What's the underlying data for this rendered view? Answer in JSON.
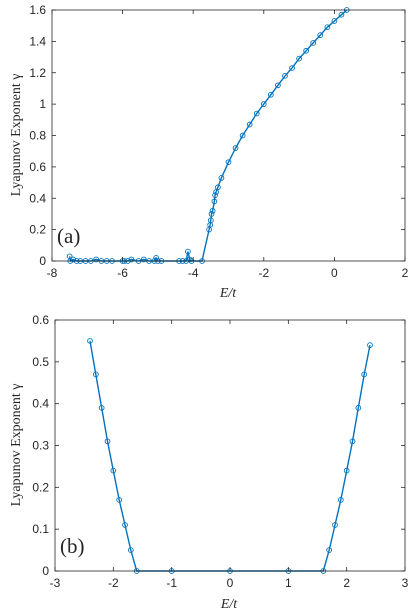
{
  "colors": {
    "series": "#0072BD",
    "axis": "#262626"
  },
  "chart_data": [
    {
      "type": "scatter",
      "panel_label": "(a)",
      "xlabel": "E/t",
      "ylabel": "Lyapunov Exponent γ",
      "xlim": [
        -8,
        2
      ],
      "ylim": [
        0,
        1.6
      ],
      "xticks": [
        "-8",
        "-6",
        "-4",
        "-2",
        "0",
        "2"
      ],
      "yticks": [
        "0",
        "0.2",
        "0.4",
        "0.6",
        "0.8",
        "1",
        "1.2",
        "1.4",
        "1.6"
      ],
      "grid": false,
      "series": [
        {
          "marker": "circle-open",
          "line": true,
          "points": [
            [
              -7.5,
              0.03
            ],
            [
              -7.48,
              0.0
            ],
            [
              -7.4,
              0.01
            ],
            [
              -7.3,
              0.0
            ],
            [
              -7.2,
              0.0
            ],
            [
              -7.05,
              0.0
            ],
            [
              -6.9,
              0.0
            ],
            [
              -6.75,
              0.01
            ],
            [
              -6.6,
              0.0
            ],
            [
              -6.45,
              0.0
            ],
            [
              -6.3,
              0.0
            ],
            [
              -6.0,
              0.0
            ],
            [
              -5.95,
              0.0
            ],
            [
              -5.85,
              0.0
            ],
            [
              -5.75,
              0.01
            ],
            [
              -5.55,
              0.0
            ],
            [
              -5.4,
              0.01
            ],
            [
              -5.25,
              0.0
            ],
            [
              -5.1,
              0.0
            ],
            [
              -5.05,
              0.02
            ],
            [
              -5.0,
              0.0
            ],
            [
              -4.9,
              0.0
            ],
            [
              -4.4,
              0.0
            ],
            [
              -4.3,
              0.0
            ],
            [
              -4.2,
              0.0
            ],
            [
              -4.15,
              0.06
            ],
            [
              -4.1,
              0.01
            ],
            [
              -4.05,
              0.0
            ],
            [
              -3.75,
              0.0
            ],
            [
              -3.55,
              0.2
            ],
            [
              -3.52,
              0.23
            ],
            [
              -3.5,
              0.26
            ],
            [
              -3.48,
              0.3
            ],
            [
              -3.45,
              0.32
            ],
            [
              -3.4,
              0.38
            ],
            [
              -3.38,
              0.42
            ],
            [
              -3.35,
              0.44
            ],
            [
              -3.3,
              0.47
            ],
            [
              -3.2,
              0.53
            ],
            [
              -3.0,
              0.63
            ],
            [
              -2.8,
              0.72
            ],
            [
              -2.6,
              0.8
            ],
            [
              -2.4,
              0.87
            ],
            [
              -2.2,
              0.94
            ],
            [
              -2.0,
              1.0
            ],
            [
              -1.8,
              1.06
            ],
            [
              -1.6,
              1.12
            ],
            [
              -1.4,
              1.18
            ],
            [
              -1.2,
              1.23
            ],
            [
              -1.0,
              1.29
            ],
            [
              -0.8,
              1.34
            ],
            [
              -0.6,
              1.39
            ],
            [
              -0.4,
              1.44
            ],
            [
              -0.2,
              1.49
            ],
            [
              0.0,
              1.53
            ],
            [
              0.2,
              1.57
            ],
            [
              0.35,
              1.6
            ]
          ]
        }
      ]
    },
    {
      "type": "scatter",
      "panel_label": "(b)",
      "xlabel": "E/t",
      "ylabel": "Lyapunov Exponent γ",
      "xlim": [
        -3,
        3
      ],
      "ylim": [
        0,
        0.6
      ],
      "xticks": [
        "-3",
        "-2",
        "-1",
        "0",
        "1",
        "2",
        "3"
      ],
      "yticks": [
        "0",
        "0.1",
        "0.2",
        "0.3",
        "0.4",
        "0.5",
        "0.6"
      ],
      "grid": false,
      "series": [
        {
          "marker": "circle-open",
          "line": true,
          "points": [
            [
              -2.4,
              0.55
            ],
            [
              -2.3,
              0.47
            ],
            [
              -2.2,
              0.39
            ],
            [
              -2.1,
              0.31
            ],
            [
              -2.0,
              0.24
            ],
            [
              -1.9,
              0.17
            ],
            [
              -1.8,
              0.11
            ],
            [
              -1.7,
              0.05
            ],
            [
              -1.6,
              0.0
            ],
            [
              -1.0,
              0.0
            ],
            [
              0.0,
              0.0
            ],
            [
              1.0,
              0.0
            ],
            [
              1.6,
              0.0
            ],
            [
              1.7,
              0.05
            ],
            [
              1.8,
              0.11
            ],
            [
              1.9,
              0.17
            ],
            [
              2.0,
              0.24
            ],
            [
              2.1,
              0.31
            ],
            [
              2.2,
              0.39
            ],
            [
              2.3,
              0.47
            ],
            [
              2.4,
              0.54
            ]
          ]
        }
      ]
    }
  ]
}
